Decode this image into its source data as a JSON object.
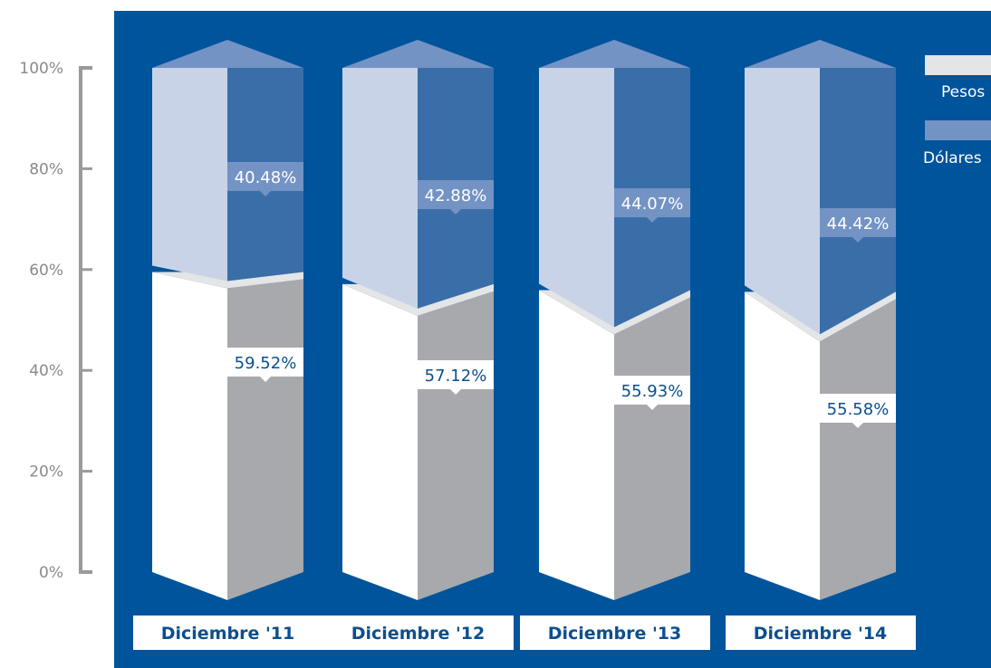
{
  "chart_data": {
    "type": "bar",
    "stacked": true,
    "normalized": true,
    "categories": [
      "Diciembre '11",
      "Diciembre '12",
      "Diciembre '13",
      "Diciembre '14"
    ],
    "series": [
      {
        "name": "Pesos",
        "values": [
          59.52,
          57.12,
          55.93,
          55.58
        ],
        "labels": [
          "59.52%",
          "57.12%",
          "55.93%",
          "55.58%"
        ]
      },
      {
        "name": "Dólares",
        "values": [
          40.48,
          42.88,
          44.07,
          44.42
        ],
        "labels": [
          "40.48%",
          "42.88%",
          "44.07%",
          "44.42%"
        ]
      }
    ],
    "y_ticks": [
      "0%",
      "20%",
      "40%",
      "60%",
      "80%",
      "100%"
    ],
    "ylim": [
      0,
      100
    ],
    "legend_position": "top-right",
    "colors": {
      "background": "#00549b",
      "pesos_front": "#ffffff",
      "pesos_side": "#a7a9ac",
      "pesos_top": "#e4e5e7",
      "dolares_front": "#c9d3e8",
      "dolares_side": "#3a6ea9",
      "dolares_top": "#7393c5",
      "axis": "#9a9a9a"
    }
  }
}
